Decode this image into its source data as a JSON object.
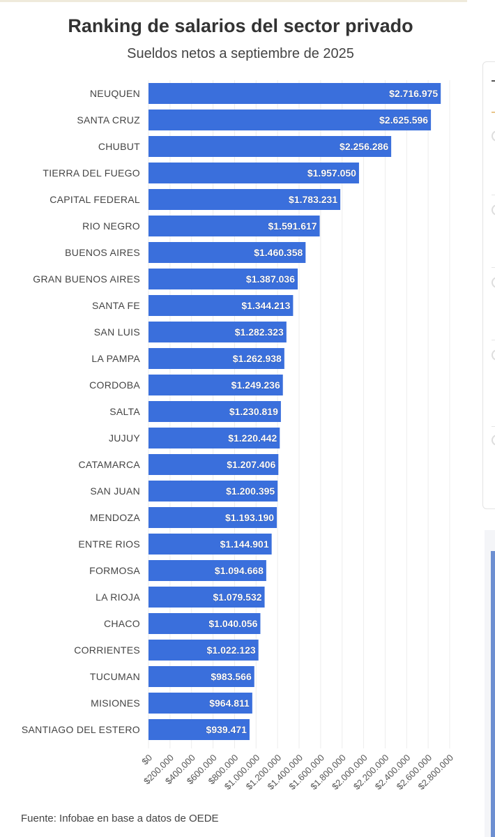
{
  "chart_data": {
    "type": "bar",
    "orientation": "horizontal",
    "title": "Ranking de salarios del sector privado",
    "subtitle": "Sueldos netos a septiembre de 2025",
    "source": "Fuente: Infobae en base a datos de OEDE",
    "xlabel": "",
    "ylabel": "",
    "xlim": [
      0,
      2800000
    ],
    "grid": true,
    "bar_color": "#3a6fdc",
    "categories": [
      "NEUQUEN",
      "SANTA CRUZ",
      "CHUBUT",
      "TIERRA DEL FUEGO",
      "CAPITAL FEDERAL",
      "RIO NEGRO",
      "BUENOS AIRES",
      "GRAN BUENOS AIRES",
      "SANTA FE",
      "SAN LUIS",
      "LA PAMPA",
      "CORDOBA",
      "SALTA",
      "JUJUY",
      "CATAMARCA",
      "SAN JUAN",
      "MENDOZA",
      "ENTRE RIOS",
      "FORMOSA",
      "LA RIOJA",
      "CHACO",
      "CORRIENTES",
      "TUCUMAN",
      "MISIONES",
      "SANTIAGO DEL ESTERO"
    ],
    "values": [
      2716975,
      2625596,
      2256286,
      1957050,
      1783231,
      1591617,
      1460358,
      1387036,
      1344213,
      1282323,
      1262938,
      1249236,
      1230819,
      1220442,
      1207406,
      1200395,
      1193190,
      1144901,
      1094668,
      1079532,
      1040056,
      1022123,
      983566,
      964811,
      939471
    ],
    "value_labels": [
      "$2.716.975",
      "$2.625.596",
      "$2.256.286",
      "$1.957.050",
      "$1.783.231",
      "$1.591.617",
      "$1.460.358",
      "$1.387.036",
      "$1.344.213",
      "$1.282.323",
      "$1.262.938",
      "$1.249.236",
      "$1.230.819",
      "$1.220.442",
      "$1.207.406",
      "$1.200.395",
      "$1.193.190",
      "$1.144.901",
      "$1.094.668",
      "$1.079.532",
      "$1.040.056",
      "$1.022.123",
      "$983.566",
      "$964.811",
      "$939.471"
    ],
    "x_ticks": [
      0,
      200000,
      400000,
      600000,
      800000,
      1000000,
      1200000,
      1400000,
      1600000,
      1800000,
      2000000,
      2200000,
      2400000,
      2600000,
      2800000
    ],
    "x_tick_labels": [
      "$0",
      "$200.000",
      "$400.000",
      "$600.000",
      "$800.000",
      "$1.000.000",
      "$1.200.000",
      "$1.400.000",
      "$1.600.000",
      "$1.800.000",
      "$2.000.000",
      "$2.200.000",
      "$2.400.000",
      "$2.600.000",
      "$2.800.000"
    ]
  }
}
